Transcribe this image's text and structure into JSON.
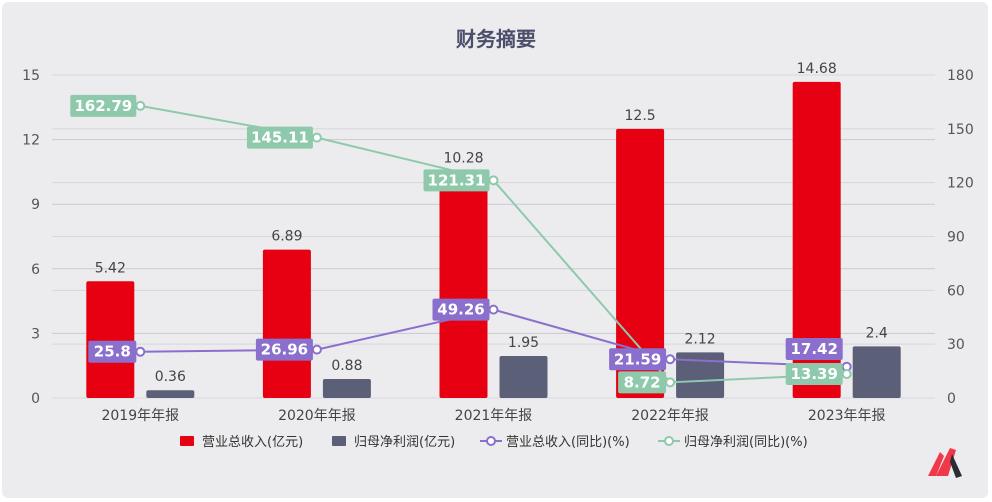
{
  "chart_data": {
    "type": "bar+line",
    "title": "财务摘要",
    "categories": [
      "2019年年报",
      "2020年年报",
      "2021年年报",
      "2022年年报",
      "2023年年报"
    ],
    "y_left": {
      "range": [
        0,
        15
      ],
      "ticks": [
        0,
        3,
        6,
        9,
        12,
        15
      ]
    },
    "y_right": {
      "range": [
        0,
        180
      ],
      "ticks": [
        0,
        30,
        60,
        90,
        120,
        150,
        180
      ]
    },
    "grid": true,
    "legend_position": "bottom",
    "series": [
      {
        "name": "营业总收入(亿元)",
        "type": "bar",
        "axis": "left",
        "color": "#e60012",
        "values": [
          5.42,
          6.89,
          10.28,
          12.5,
          14.68
        ]
      },
      {
        "name": "归母净利润(亿元)",
        "type": "bar",
        "axis": "left",
        "color": "#5b5f78",
        "values": [
          0.36,
          0.88,
          1.95,
          2.12,
          2.4
        ]
      },
      {
        "name": "营业总收入(同比)(%)",
        "type": "line",
        "axis": "right",
        "color": "#8a6fcc",
        "values": [
          25.8,
          26.96,
          49.26,
          21.59,
          17.42
        ]
      },
      {
        "name": "归母净利润(同比)(%)",
        "type": "line",
        "axis": "right",
        "color": "#8fc9ab",
        "values": [
          162.79,
          145.11,
          121.31,
          8.72,
          13.39
        ]
      }
    ]
  },
  "logo": {
    "name": "logo-icon",
    "colors": [
      "#f0384b",
      "#2b2d33"
    ]
  }
}
